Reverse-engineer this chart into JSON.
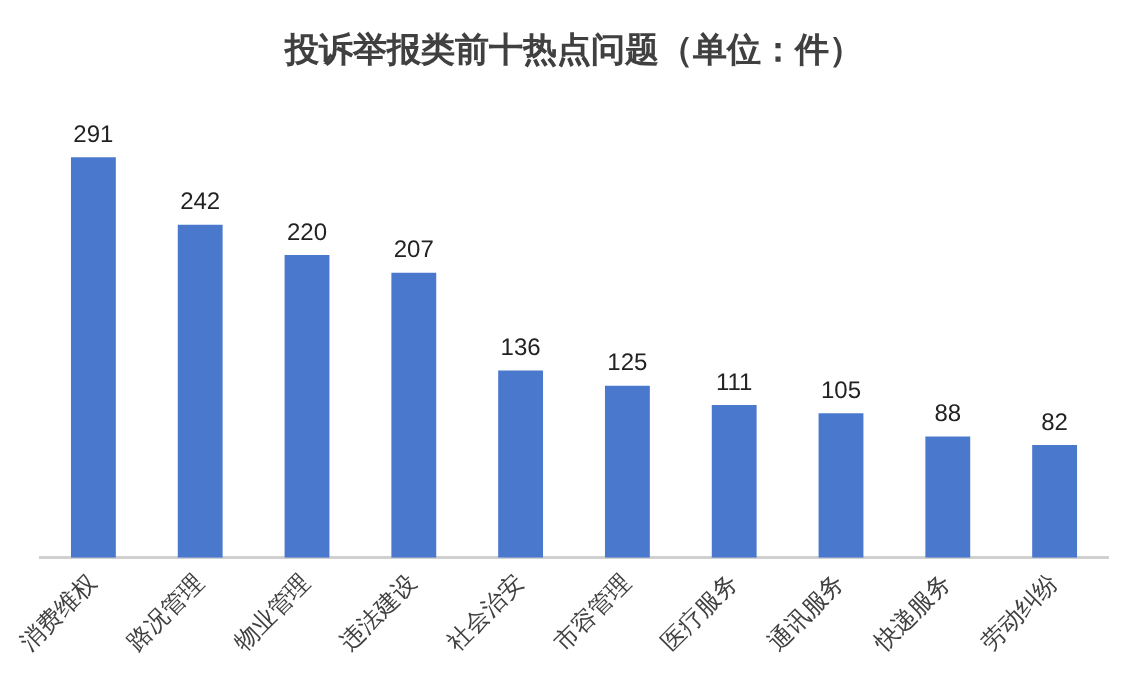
{
  "chart_data": {
    "type": "bar",
    "title": "投诉举报类前十热点问题（单位：件）",
    "categories": [
      "消费维权",
      "路况管理",
      "物业管理",
      "违法建设",
      "社会治安",
      "市容管理",
      "医疗服务",
      "通讯服务",
      "快递服务",
      "劳动纠纷"
    ],
    "values": [
      291,
      242,
      220,
      207,
      136,
      125,
      111,
      105,
      88,
      82
    ],
    "color": "#4a78cc",
    "data_labels": true,
    "grid": false,
    "legend": false,
    "tick_labels": "x"
  }
}
